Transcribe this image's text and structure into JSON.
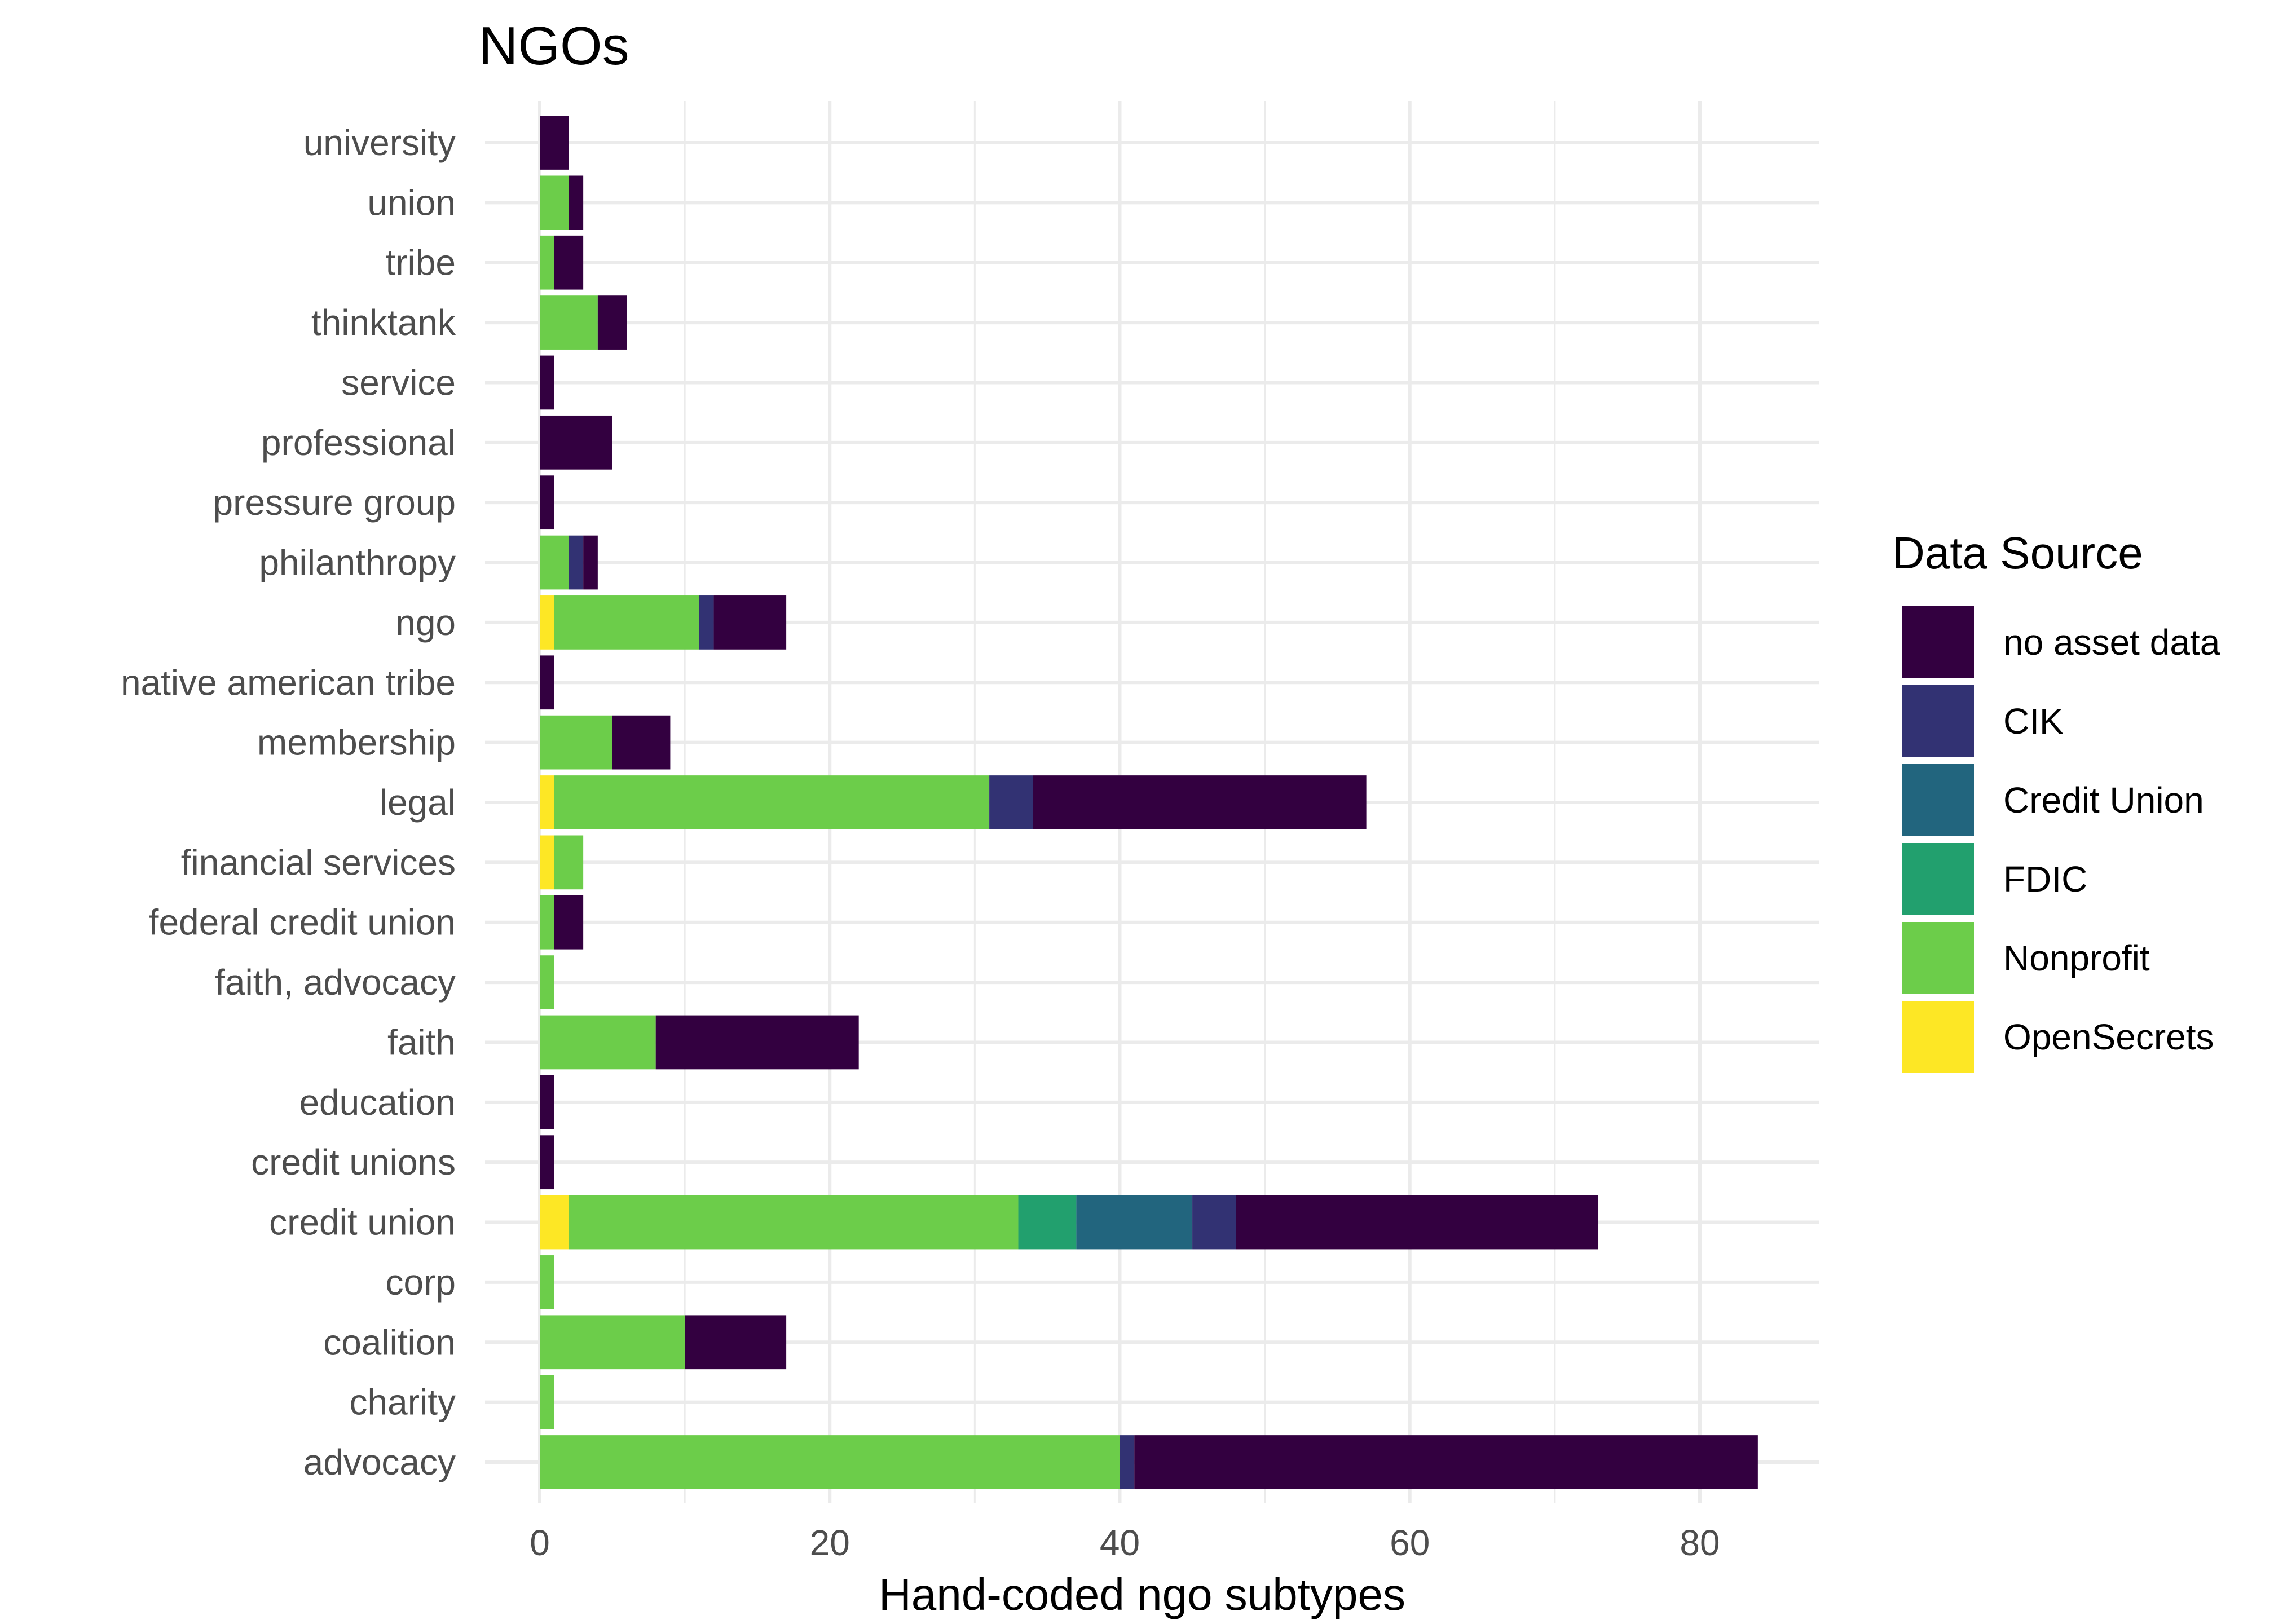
{
  "chart_data": {
    "type": "bar",
    "orientation": "horizontal",
    "stacked": true,
    "title": "NGOs",
    "xlabel": "Hand-coded ngo subtypes",
    "ylabel": "",
    "xlim": [
      0,
      88
    ],
    "xticks": [
      0,
      20,
      40,
      60,
      80
    ],
    "grid": true,
    "legend_position": "right",
    "legend_title": "Data Source",
    "categories": [
      "advocacy",
      "charity",
      "coalition",
      "corp",
      "credit union",
      "credit unions",
      "education",
      "faith",
      "faith, advocacy",
      "federal credit union",
      "financial services",
      "legal",
      "membership",
      "native american tribe",
      "ngo",
      "philanthropy",
      "pressure group",
      "professional",
      "service",
      "thinktank",
      "tribe",
      "union",
      "university"
    ],
    "series": [
      {
        "name": "OpenSecrets",
        "color": "#fde725",
        "values": [
          0,
          0,
          0,
          0,
          2,
          0,
          0,
          0,
          0,
          0,
          1,
          1,
          0,
          0,
          1,
          0,
          0,
          0,
          0,
          0,
          0,
          0,
          0
        ]
      },
      {
        "name": "Nonprofit",
        "color": "#6ccd4a",
        "values": [
          40,
          1,
          10,
          1,
          31,
          0,
          0,
          8,
          1,
          1,
          2,
          30,
          5,
          0,
          10,
          2,
          0,
          0,
          0,
          4,
          1,
          2,
          0
        ]
      },
      {
        "name": "FDIC",
        "color": "#22a06e",
        "values": [
          0,
          0,
          0,
          0,
          4,
          0,
          0,
          0,
          0,
          0,
          0,
          0,
          0,
          0,
          0,
          0,
          0,
          0,
          0,
          0,
          0,
          0,
          0
        ]
      },
      {
        "name": "Credit Union",
        "color": "#22657e",
        "values": [
          0,
          0,
          0,
          0,
          8,
          0,
          0,
          0,
          0,
          0,
          0,
          0,
          0,
          0,
          0,
          0,
          0,
          0,
          0,
          0,
          0,
          0,
          0
        ]
      },
      {
        "name": "CIK",
        "color": "#323273",
        "values": [
          1,
          0,
          0,
          0,
          3,
          0,
          0,
          0,
          0,
          0,
          0,
          3,
          0,
          0,
          1,
          1,
          0,
          0,
          0,
          0,
          0,
          0,
          0
        ]
      },
      {
        "name": " no asset data",
        "color": "#330040",
        "values": [
          43,
          0,
          7,
          0,
          25,
          1,
          1,
          14,
          0,
          2,
          0,
          23,
          4,
          1,
          5,
          1,
          1,
          5,
          1,
          2,
          2,
          1,
          2
        ]
      }
    ],
    "legend_order": [
      " no asset data",
      "CIK",
      "Credit Union",
      "FDIC",
      "Nonprofit",
      "OpenSecrets"
    ]
  }
}
